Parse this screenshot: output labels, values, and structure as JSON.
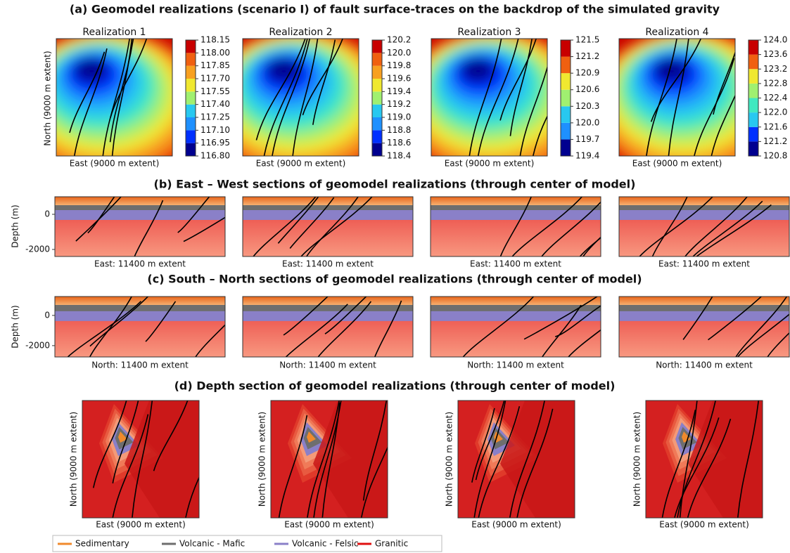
{
  "panel_a": {
    "title": "(a) Geomodel realizations (scenario I) of fault surface-traces on the backdrop of the simulated gravity",
    "x_label": "East (9000 m extent)",
    "y_label": "North (9000 m extent)",
    "realizations": [
      {
        "title": "Realization 1",
        "colorbar_ticks": [
          118.15,
          {
            "value": 118.0,
            "label": "118.00"
          },
          117.85,
          {
            "value": 117.7,
            "label": "117.70"
          },
          117.55,
          {
            "value": 117.4,
            "label": "117.40"
          },
          117.25,
          {
            "value": 117.1,
            "label": "117.10"
          },
          116.95,
          {
            "value": 116.8,
            "label": "116.80"
          }
        ]
      },
      {
        "title": "Realization 2",
        "colorbar_ticks": [
          120.2,
          {
            "value": 120,
            "label": "120.0"
          },
          119.8,
          119.6,
          119.4,
          119.2,
          {
            "value": 119,
            "label": "119.0"
          },
          118.8,
          118.6,
          118.4
        ]
      },
      {
        "title": "Realization 3",
        "colorbar_ticks": [
          121.5,
          121.2,
          120.9,
          120.6,
          120.3,
          {
            "value": 120,
            "label": "120.0"
          },
          119.7,
          119.4
        ]
      },
      {
        "title": "Realization 4",
        "colorbar_ticks": [
          {
            "value": 124,
            "label": "124.0"
          },
          123.6,
          123.2,
          122.8,
          122.4,
          {
            "value": 122,
            "label": "122.0"
          },
          121.6,
          121.2,
          120.8
        ]
      }
    ]
  },
  "panel_b": {
    "title": "(b) East – West sections of geomodel realizations (through center of model)",
    "y_label": "Depth (m)",
    "x_label": "East: 11400 m extent",
    "ylim": [
      -2400,
      1000
    ],
    "yticks": [
      0,
      -2000
    ]
  },
  "panel_c": {
    "title": "(c) South – North sections of geomodel realizations (through center of model)",
    "y_label": "Depth (m)",
    "x_label": "North: 11400 m extent",
    "ylim": [
      -2750,
      1250
    ],
    "yticks": [
      0,
      -2000
    ]
  },
  "panel_d": {
    "title": "(d) Depth section of geomodel realizations (through center of model)",
    "x_label": "East (9000 m extent)",
    "y_label": "North (9000 m extent)"
  },
  "legend": [
    {
      "name": "Sedimentary",
      "color": "#f08a2c"
    },
    {
      "name": "Volcanic - Mafic",
      "color": "#6e6e6e"
    },
    {
      "name": "Volcanic - Felsic",
      "color": "#8a80c8"
    },
    {
      "name": "Granitic",
      "color": "#e01010"
    }
  ]
}
